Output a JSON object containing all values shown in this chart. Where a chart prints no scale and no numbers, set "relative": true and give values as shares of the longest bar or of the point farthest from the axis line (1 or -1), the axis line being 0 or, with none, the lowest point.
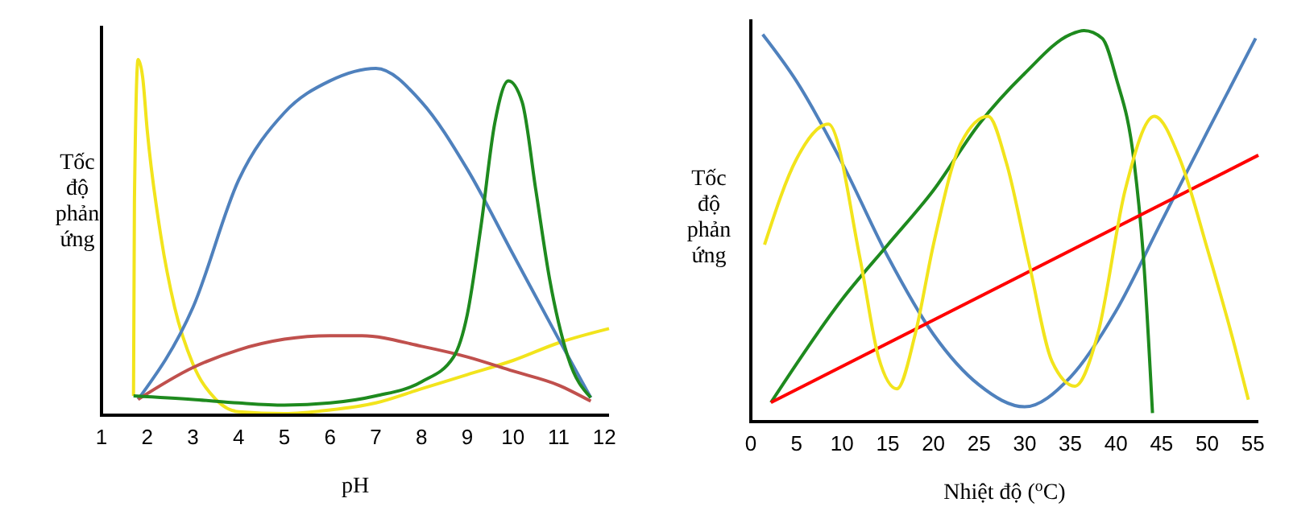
{
  "chart_data": [
    {
      "type": "line",
      "relative": true,
      "xlabel": "pH",
      "ylabel": "Tốc độ phản ứng",
      "xlim": [
        1,
        12.1
      ],
      "xticks": [
        1,
        2,
        3,
        4,
        5,
        6,
        7,
        8,
        9,
        10,
        11,
        12
      ],
      "grid": false,
      "marker": "none",
      "line_style": "solid",
      "series": [
        {
          "color": "#f2e41c",
          "x": [
            1.7,
            1.72,
            1.8,
            1.9,
            2.0,
            2.3,
            2.6,
            3.0,
            3.5,
            4,
            5,
            6,
            7,
            8,
            9,
            10,
            11,
            12.1
          ],
          "values": [
            0.05,
            0.6,
            1.0,
            0.95,
            0.8,
            0.5,
            0.3,
            0.14,
            0.04,
            0.005,
            0,
            0.01,
            0.03,
            0.07,
            0.11,
            0.15,
            0.2,
            0.24
          ]
        },
        {
          "color": "#4f81bd",
          "x": [
            1.8,
            3,
            4,
            5,
            6,
            7,
            8,
            9,
            10,
            11,
            11.7
          ],
          "values": [
            0.04,
            0.3,
            0.66,
            0.85,
            0.94,
            0.975,
            0.88,
            0.69,
            0.45,
            0.21,
            0.045
          ]
        },
        {
          "color": "#c0504d",
          "x": [
            1.8,
            3,
            4,
            5,
            6,
            6.7,
            8,
            9,
            10,
            11,
            11.7
          ],
          "values": [
            0.04,
            0.13,
            0.18,
            0.21,
            0.22,
            0.22,
            0.19,
            0.16,
            0.12,
            0.08,
            0.035
          ]
        },
        {
          "color": "#1e8a1e",
          "x": [
            1.7,
            3,
            4,
            5,
            6,
            7,
            8,
            8.7,
            9,
            9.3,
            9.6,
            9.9,
            10.2,
            10.5,
            10.8,
            11.2,
            11.7
          ],
          "values": [
            0.05,
            0.04,
            0.03,
            0.024,
            0.03,
            0.05,
            0.09,
            0.16,
            0.28,
            0.53,
            0.82,
            0.94,
            0.88,
            0.63,
            0.38,
            0.16,
            0.045
          ]
        }
      ]
    },
    {
      "type": "line",
      "relative": true,
      "xlabel": "Nhiệt độ ($^{o}$C)",
      "ylabel": "Tốc độ phản ứng",
      "xlim": [
        0,
        55.6
      ],
      "xticks": [
        0,
        5,
        10,
        15,
        20,
        25,
        30,
        35,
        40,
        45,
        50,
        55
      ],
      "grid": false,
      "marker": "none",
      "line_style": "solid",
      "series": [
        {
          "color": "#4f81bd",
          "x": [
            1.3,
            5,
            10,
            15,
            20,
            25,
            30,
            35,
            40,
            45,
            50,
            55.3
          ],
          "values": [
            0.99,
            0.87,
            0.66,
            0.42,
            0.22,
            0.09,
            0.034,
            0.11,
            0.28,
            0.51,
            0.74,
            0.98
          ]
        },
        {
          "color": "#1e8a1e",
          "x": [
            2.2,
            10,
            15,
            20,
            25,
            30,
            35,
            36.5,
            38.5,
            40,
            42,
            43,
            44
          ],
          "values": [
            0.045,
            0.31,
            0.45,
            0.59,
            0.76,
            0.89,
            0.99,
            1.0,
            0.98,
            0.88,
            0.66,
            0.42,
            0.018
          ]
        },
        {
          "color": "#ff0000",
          "x": [
            2.2,
            55.6
          ],
          "values": [
            0.045,
            0.68
          ]
        },
        {
          "color": "#f2e41c",
          "x": [
            1.5,
            5,
            8.5,
            12,
            14,
            16,
            18,
            20,
            23,
            26,
            28,
            30.5,
            33,
            35.5,
            38,
            41,
            44.2,
            47,
            50,
            53,
            54.5
          ],
          "values": [
            0.45,
            0.67,
            0.76,
            0.41,
            0.16,
            0.08,
            0.22,
            0.45,
            0.71,
            0.78,
            0.66,
            0.4,
            0.15,
            0.087,
            0.22,
            0.59,
            0.78,
            0.67,
            0.44,
            0.19,
            0.052
          ]
        }
      ]
    }
  ]
}
